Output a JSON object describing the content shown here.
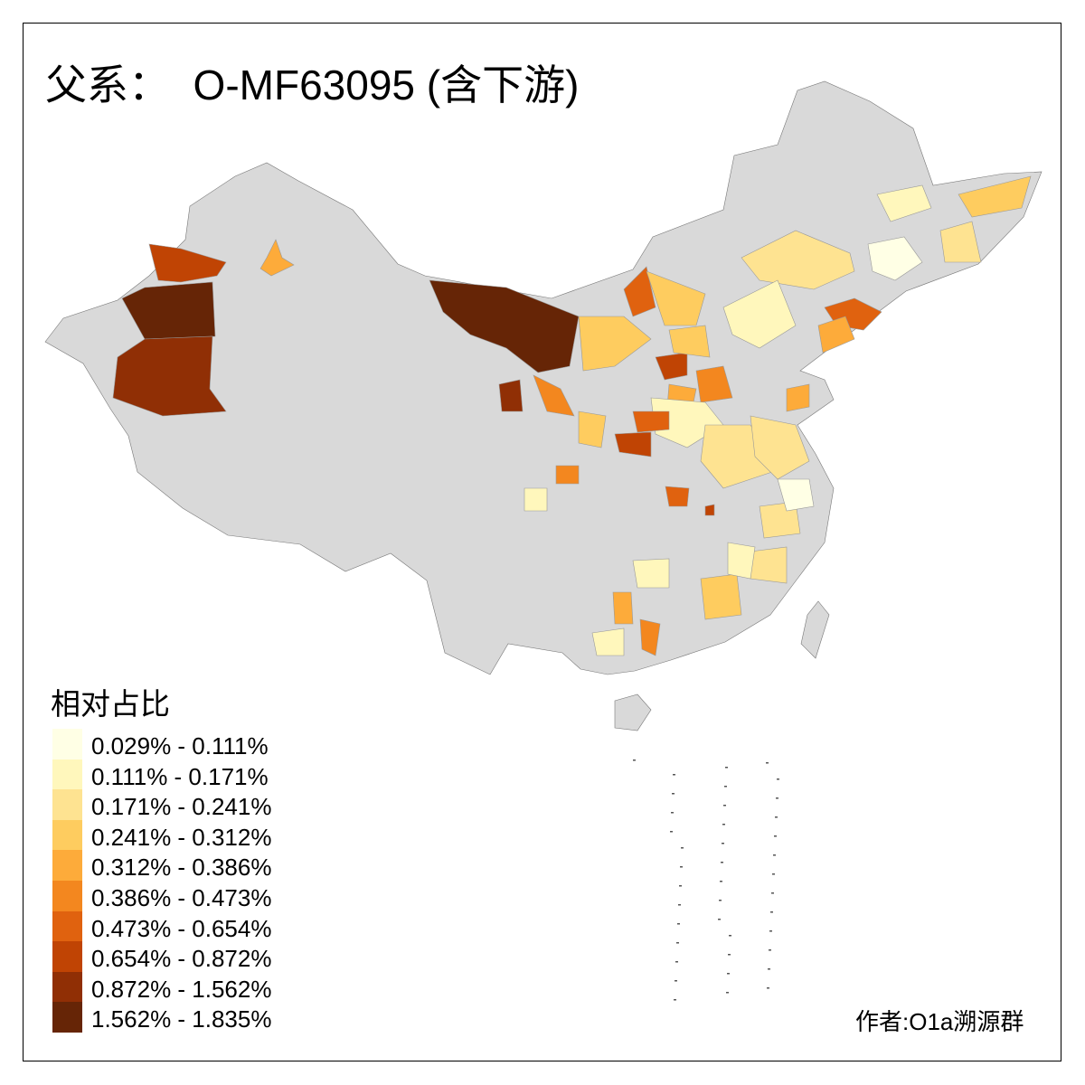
{
  "title": "父系：  O-MF63095 (含下游)",
  "legend": {
    "title": "相对占比",
    "bins": [
      {
        "label": "0.029% - 0.111%",
        "color": "#FFFFE5"
      },
      {
        "label": "0.111% - 0.171%",
        "color": "#FFF7BC"
      },
      {
        "label": "0.171% - 0.241%",
        "color": "#FEE391"
      },
      {
        "label": "0.241% - 0.312%",
        "color": "#FECC5F"
      },
      {
        "label": "0.312% - 0.386%",
        "color": "#FDAB3A"
      },
      {
        "label": "0.386% - 0.473%",
        "color": "#F3871F"
      },
      {
        "label": "0.473% - 0.654%",
        "color": "#E0620F"
      },
      {
        "label": "0.654% - 0.872%",
        "color": "#C04404"
      },
      {
        "label": "0.872% - 1.562%",
        "color": "#902F05"
      },
      {
        "label": "1.562% - 1.835%",
        "color": "#662506"
      }
    ]
  },
  "no_data_color": "#D9D9D9",
  "region_classes": [
    7,
    9,
    8,
    4,
    9,
    6,
    3,
    3,
    2,
    1,
    0,
    2,
    3,
    1,
    6,
    4,
    7,
    3,
    5,
    4,
    1,
    2,
    6,
    7,
    8,
    5,
    3,
    2,
    1,
    5,
    6,
    1,
    4,
    3,
    2,
    1,
    2,
    7,
    5,
    0,
    4,
    1
  ],
  "credit": "作者:O1a溯源群"
}
